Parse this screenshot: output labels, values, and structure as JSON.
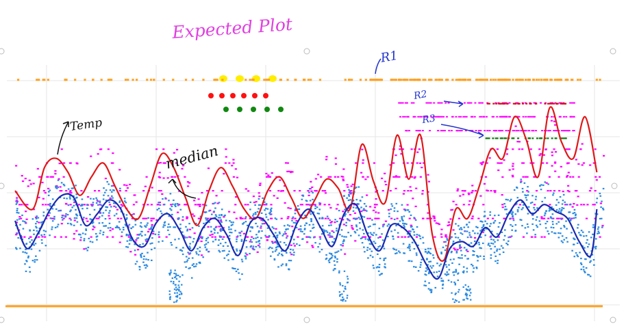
{
  "chart_data": {
    "type": "scatter",
    "title": "Expected Plot",
    "xlabel": "",
    "ylabel": "",
    "xlim": [
      0,
      100
    ],
    "ylim": [
      0,
      100
    ],
    "grid": true,
    "annotations": [
      "Temp",
      "median",
      "R1",
      "R2",
      "R3"
    ],
    "legend_markers": [
      {
        "color": "#ffee00",
        "count": 4
      },
      {
        "color": "#ff1010",
        "count": 6
      },
      {
        "color": "#118811",
        "count": 5
      }
    ],
    "series": [
      {
        "kind": "line",
        "color": "#e01818",
        "x": [
          0,
          3,
          5,
          7,
          9,
          11,
          13,
          15,
          17,
          19,
          21,
          23,
          25,
          27,
          29,
          31,
          33,
          35,
          37,
          39,
          41,
          43,
          45,
          47,
          49,
          51,
          53,
          55,
          57,
          59,
          61,
          63,
          65,
          67,
          69,
          71,
          73,
          75,
          77,
          79,
          81,
          83,
          85,
          87,
          89,
          91,
          93,
          95,
          97,
          99
        ],
        "y": [
          50,
          42,
          60,
          64,
          58,
          48,
          56,
          62,
          52,
          42,
          38,
          52,
          66,
          60,
          47,
          35,
          50,
          60,
          52,
          42,
          38,
          50,
          56,
          47,
          38,
          46,
          55,
          51,
          42,
          70,
          54,
          45,
          74,
          55,
          74,
          31,
          20,
          42,
          38,
          52,
          68,
          64,
          82,
          72,
          56,
          86,
          71,
          64,
          82,
          58
        ]
      },
      {
        "kind": "line",
        "color": "#1a2ab0",
        "x": [
          0,
          2,
          4,
          6,
          8,
          10,
          12,
          14,
          16,
          18,
          20,
          22,
          24,
          26,
          28,
          30,
          32,
          34,
          36,
          38,
          40,
          42,
          44,
          46,
          48,
          50,
          52,
          54,
          56,
          58,
          60,
          62,
          64,
          66,
          68,
          70,
          72,
          74,
          76,
          78,
          80,
          82,
          84,
          86,
          88,
          90,
          92,
          94,
          96,
          98,
          99
        ],
        "y": [
          37,
          25,
          32,
          42,
          48,
          47,
          35,
          40,
          46,
          42,
          29,
          26,
          36,
          40,
          33,
          24,
          34,
          38,
          31,
          22,
          36,
          38,
          31,
          24,
          36,
          42,
          34,
          26,
          40,
          44,
          31,
          24,
          35,
          34,
          28,
          18,
          12,
          25,
          28,
          26,
          34,
          30,
          40,
          46,
          40,
          44,
          41,
          38,
          28,
          22,
          42
        ]
      },
      {
        "kind": "scatter",
        "color": "#ff00ff",
        "x_range": [
          0,
          100
        ],
        "y_range": [
          22,
          92
        ]
      },
      {
        "kind": "scatter",
        "color": "#2a8ae0",
        "x_range": [
          0,
          100
        ],
        "y_range": [
          5,
          55
        ]
      },
      {
        "kind": "scatter",
        "color": "#ffa020",
        "x_range": [
          0,
          100
        ],
        "y_range": [
          96,
          100
        ]
      },
      {
        "kind": "hline",
        "color": "#ffa020",
        "y": 0
      }
    ]
  }
}
